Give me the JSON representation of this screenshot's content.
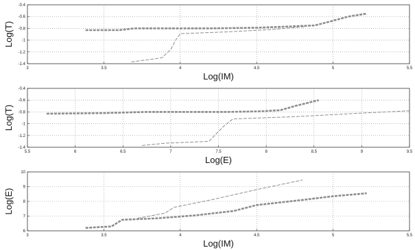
{
  "chart_data": [
    {
      "type": "line",
      "xlabel": "Log(IM)",
      "ylabel": "Log(T)",
      "xlim": [
        3,
        5.5
      ],
      "ylim": [
        -1.4,
        -0.4
      ],
      "xticks": [
        3,
        3.5,
        4,
        4.5,
        5,
        5.5
      ],
      "xtick_labels": [
        "3",
        "3.5",
        "4",
        "4.5",
        "5",
        "5.5"
      ],
      "yticks": [
        -1.4,
        -1.2,
        -1,
        -0.8,
        -0.6,
        -0.4
      ],
      "ytick_labels": [
        "-1.4",
        "-1.2",
        "-1",
        "-0.8",
        "-0.6",
        "-0.4"
      ],
      "grid": true,
      "series": [
        {
          "style": "thick-dashed",
          "color": "#8c8c8c",
          "x": [
            3.38,
            3.6,
            3.7,
            4.0,
            4.2,
            4.5,
            4.7,
            4.88,
            5.0,
            5.1,
            5.22
          ],
          "y": [
            -0.83,
            -0.83,
            -0.8,
            -0.8,
            -0.8,
            -0.79,
            -0.77,
            -0.75,
            -0.67,
            -0.6,
            -0.55
          ]
        },
        {
          "style": "thin-dashed",
          "color": "#8c8c8c",
          "x": [
            3.68,
            3.88,
            3.94,
            3.97,
            4.0,
            4.3,
            4.6,
            4.82
          ],
          "y": [
            -1.37,
            -1.3,
            -1.15,
            -1.0,
            -0.89,
            -0.86,
            -0.82,
            -0.77
          ]
        }
      ]
    },
    {
      "type": "line",
      "xlabel": "Log(E)",
      "ylabel": "Log(T)",
      "xlim": [
        5.5,
        9.5
      ],
      "ylim": [
        -1.4,
        -0.4
      ],
      "xticks": [
        5.5,
        6,
        6.5,
        7,
        7.5,
        8,
        8.5,
        9,
        9.5
      ],
      "xtick_labels": [
        "5.5",
        "6",
        "6.5",
        "7",
        "7.5",
        "8",
        "8.5",
        "9",
        "9.5"
      ],
      "yticks": [
        -1.4,
        -1.2,
        -1,
        -0.8,
        -0.6,
        -0.4
      ],
      "ytick_labels": [
        "-1.4",
        "-1.2",
        "-1",
        "-0.8",
        "-0.6",
        "-0.4"
      ],
      "grid": true,
      "series": [
        {
          "style": "thick-dashed",
          "color": "#8c8c8c",
          "x": [
            5.7,
            6.3,
            6.75,
            7.2,
            7.6,
            7.95,
            8.15,
            8.3,
            8.55
          ],
          "y": [
            -0.83,
            -0.82,
            -0.8,
            -0.8,
            -0.8,
            -0.79,
            -0.77,
            -0.7,
            -0.6
          ]
        },
        {
          "style": "thin-dashed",
          "color": "#8c8c8c",
          "x": [
            6.7,
            6.95,
            7.4,
            7.55,
            7.65,
            8.3,
            9.0,
            9.5
          ],
          "y": [
            -1.37,
            -1.33,
            -1.3,
            -1.05,
            -0.92,
            -0.88,
            -0.82,
            -0.78
          ]
        }
      ]
    },
    {
      "type": "line",
      "xlabel": "Log(IM)",
      "ylabel": "Log(E)",
      "xlim": [
        3,
        5.5
      ],
      "ylim": [
        6,
        10
      ],
      "xticks": [
        3,
        3.5,
        4,
        4.5,
        5,
        5.5
      ],
      "xtick_labels": [
        "3",
        "3.5",
        "4",
        "4.5",
        "5",
        "5.5"
      ],
      "yticks": [
        6,
        7,
        8,
        9,
        10
      ],
      "ytick_labels": [
        "6",
        "7",
        "8",
        "9",
        "10"
      ],
      "grid": true,
      "series": [
        {
          "style": "thick-dashed",
          "color": "#8c8c8c",
          "x": [
            3.38,
            3.55,
            3.62,
            3.85,
            4.1,
            4.35,
            4.5,
            4.8,
            5.0,
            5.22
          ],
          "y": [
            6.2,
            6.3,
            6.75,
            6.85,
            7.05,
            7.35,
            7.75,
            8.1,
            8.35,
            8.55
          ]
        },
        {
          "style": "thin-dashed",
          "color": "#8c8c8c",
          "x": [
            3.72,
            3.9,
            3.96,
            4.2,
            4.5,
            4.8
          ],
          "y": [
            6.85,
            7.2,
            7.6,
            8.1,
            8.8,
            9.45
          ]
        }
      ]
    }
  ]
}
